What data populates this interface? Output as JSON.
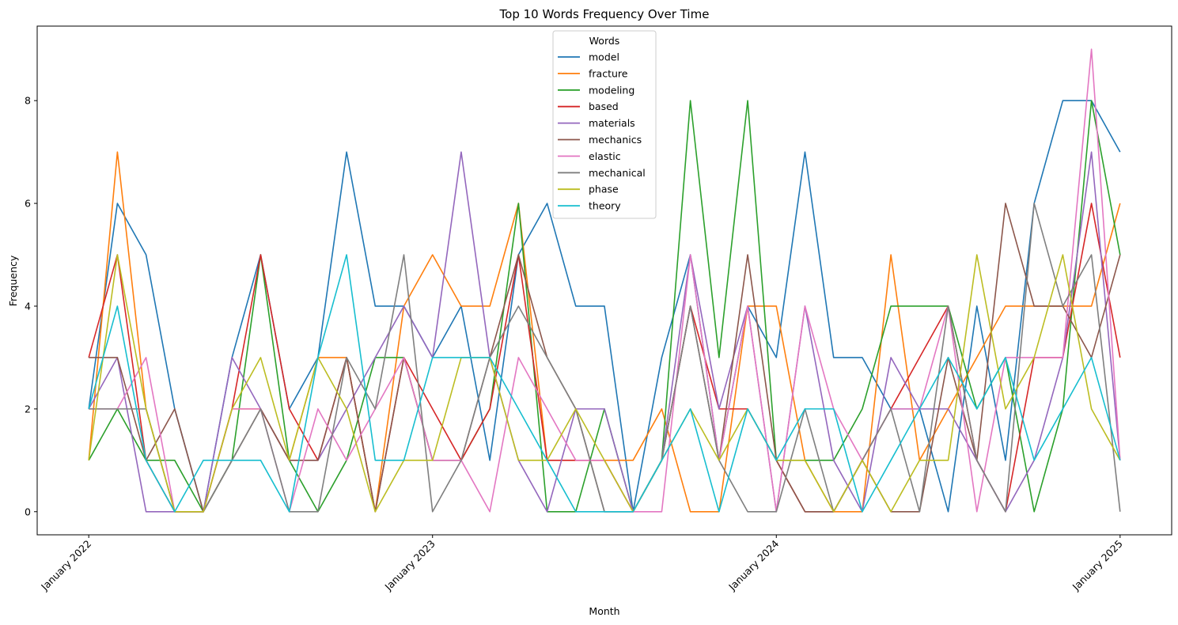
{
  "chart_data": {
    "type": "line",
    "title": "Top 10 Words Frequency Over Time",
    "xlabel": "Month",
    "ylabel": "Frequency",
    "legend_title": "Words",
    "legend_position": "top-center",
    "grid": false,
    "ylim": [
      -0.45,
      9.45
    ],
    "yticks": [
      0,
      2,
      4,
      6,
      8
    ],
    "xlim": [
      "2021-12",
      "2025-02"
    ],
    "xticks": [
      {
        "x": "2022-01",
        "label": "January 2022"
      },
      {
        "x": "2023-01",
        "label": "January 2023"
      },
      {
        "x": "2024-01",
        "label": "January 2024"
      },
      {
        "x": "2025-01",
        "label": "January 2025"
      }
    ],
    "x": [
      "2022-01",
      "2022-02",
      "2022-03",
      "2022-04",
      "2022-05",
      "2022-06",
      "2022-07",
      "2022-08",
      "2022-09",
      "2022-10",
      "2022-11",
      "2022-12",
      "2023-01",
      "2023-02",
      "2023-03",
      "2023-04",
      "2023-05",
      "2023-06",
      "2023-07",
      "2023-08",
      "2023-09",
      "2023-10",
      "2023-11",
      "2023-12",
      "2024-01",
      "2024-02",
      "2024-03",
      "2024-04",
      "2024-05",
      "2024-06",
      "2024-07",
      "2024-08",
      "2024-09",
      "2024-10",
      "2024-11",
      "2024-12",
      "2025-01"
    ],
    "series": [
      {
        "name": "model",
        "color": "#1f77b4",
        "values": [
          2,
          6,
          5,
          2,
          0,
          3,
          5,
          2,
          3,
          7,
          4,
          4,
          3,
          4,
          1,
          5,
          6,
          4,
          4,
          0,
          3,
          5,
          1,
          4,
          3,
          7,
          3,
          3,
          2,
          2,
          0,
          4,
          1,
          6,
          8,
          8,
          7
        ]
      },
      {
        "name": "fracture",
        "color": "#ff7f0e",
        "values": [
          1,
          7,
          2,
          0,
          0,
          2,
          2,
          1,
          3,
          3,
          0,
          4,
          5,
          4,
          4,
          6,
          1,
          1,
          1,
          1,
          2,
          0,
          0,
          4,
          4,
          1,
          0,
          0,
          5,
          1,
          2,
          3,
          4,
          4,
          4,
          4,
          6
        ]
      },
      {
        "name": "modeling",
        "color": "#2ca02c",
        "values": [
          1,
          2,
          1,
          1,
          0,
          1,
          5,
          1,
          0,
          1,
          3,
          3,
          1,
          1,
          2,
          6,
          0,
          0,
          2,
          0,
          1,
          8,
          3,
          8,
          1,
          1,
          1,
          2,
          4,
          4,
          4,
          2,
          3,
          0,
          2,
          8,
          5
        ]
      },
      {
        "name": "based",
        "color": "#d62728",
        "values": [
          3,
          5,
          1,
          0,
          0,
          2,
          5,
          2,
          1,
          3,
          0,
          3,
          2,
          1,
          2,
          5,
          1,
          1,
          1,
          0,
          1,
          4,
          2,
          2,
          1,
          0,
          0,
          1,
          2,
          3,
          4,
          1,
          0,
          3,
          3,
          6,
          3
        ]
      },
      {
        "name": "materials",
        "color": "#9467bd",
        "values": [
          2,
          3,
          0,
          0,
          0,
          3,
          2,
          1,
          1,
          2,
          3,
          4,
          3,
          7,
          3,
          1,
          0,
          2,
          2,
          0,
          1,
          5,
          2,
          4,
          0,
          4,
          1,
          0,
          3,
          2,
          2,
          1,
          0,
          1,
          3,
          7,
          1
        ]
      },
      {
        "name": "mechanics",
        "color": "#8c564b",
        "values": [
          3,
          3,
          1,
          2,
          0,
          1,
          2,
          1,
          1,
          3,
          0,
          3,
          1,
          1,
          3,
          5,
          3,
          2,
          0,
          0,
          1,
          4,
          1,
          5,
          1,
          0,
          0,
          1,
          0,
          0,
          3,
          1,
          6,
          4,
          4,
          3,
          5
        ]
      },
      {
        "name": "elastic",
        "color": "#e377c2",
        "values": [
          2,
          2,
          3,
          0,
          0,
          2,
          2,
          0,
          2,
          1,
          2,
          3,
          1,
          1,
          0,
          3,
          2,
          1,
          1,
          0,
          0,
          5,
          1,
          4,
          0,
          4,
          2,
          1,
          2,
          2,
          4,
          0,
          3,
          3,
          3,
          9,
          1
        ]
      },
      {
        "name": "mechanical",
        "color": "#7f7f7f",
        "values": [
          2,
          2,
          2,
          0,
          0,
          1,
          2,
          0,
          0,
          3,
          2,
          5,
          0,
          1,
          3,
          4,
          3,
          2,
          0,
          0,
          1,
          4,
          1,
          0,
          0,
          2,
          0,
          1,
          2,
          0,
          4,
          1,
          0,
          6,
          4,
          5,
          0
        ]
      },
      {
        "name": "phase",
        "color": "#bcbd22",
        "values": [
          1,
          5,
          2,
          0,
          0,
          2,
          3,
          1,
          3,
          2,
          0,
          1,
          1,
          3,
          3,
          1,
          1,
          2,
          1,
          0,
          1,
          2,
          1,
          2,
          1,
          1,
          0,
          1,
          0,
          1,
          1,
          5,
          2,
          3,
          5,
          2,
          1
        ]
      },
      {
        "name": "theory",
        "color": "#17becf",
        "values": [
          2,
          4,
          1,
          0,
          1,
          1,
          1,
          0,
          3,
          5,
          1,
          1,
          3,
          3,
          3,
          2,
          1,
          0,
          0,
          0,
          1,
          2,
          0,
          2,
          1,
          2,
          2,
          0,
          1,
          2,
          3,
          2,
          3,
          1,
          2,
          3,
          1
        ]
      }
    ]
  }
}
